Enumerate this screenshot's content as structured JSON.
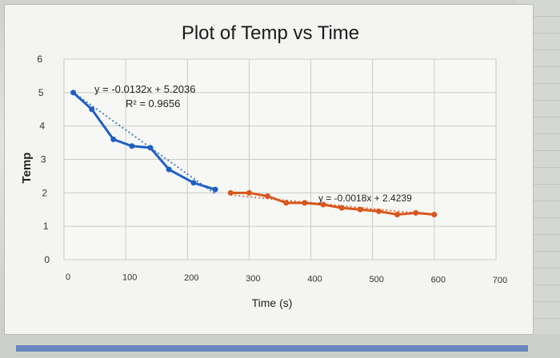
{
  "chart_data": {
    "type": "scatter",
    "title": "Plot of Temp vs Time",
    "xlabel": "Time (s)",
    "ylabel": "Temp",
    "xlim": [
      0,
      700
    ],
    "ylim": [
      0,
      6
    ],
    "x_ticks": [
      "0",
      "100",
      "200",
      "300",
      "400",
      "500",
      "600",
      "700"
    ],
    "y_ticks": [
      "0",
      "1",
      "2",
      "3",
      "4",
      "5",
      "6"
    ],
    "grid": true,
    "series": [
      {
        "color": "#1f5fc4",
        "x": [
          15,
          45,
          80,
          110,
          140,
          170,
          210,
          245
        ],
        "y": [
          5.0,
          4.5,
          3.6,
          3.4,
          3.35,
          2.7,
          2.3,
          2.1
        ],
        "trendline": {
          "equation": "y = -0.0132x + 5.2036",
          "r2": "R² = 0.9656",
          "slope": -0.0132,
          "intercept": 5.2036,
          "range": [
            15,
            245
          ]
        }
      },
      {
        "color": "#d9561c",
        "x": [
          270,
          300,
          330,
          360,
          390,
          420,
          450,
          480,
          510,
          540,
          570,
          600
        ],
        "y": [
          2.0,
          2.0,
          1.9,
          1.7,
          1.7,
          1.65,
          1.55,
          1.5,
          1.45,
          1.35,
          1.4,
          1.35
        ],
        "trendline": {
          "equation": "y = -0.0018x + 2.4239",
          "slope": -0.0018,
          "intercept": 2.4239,
          "range": [
            270,
            600
          ]
        }
      }
    ]
  },
  "colors": {
    "plot_bg": "#f7f8f5",
    "grid": "#c9cbc5"
  }
}
